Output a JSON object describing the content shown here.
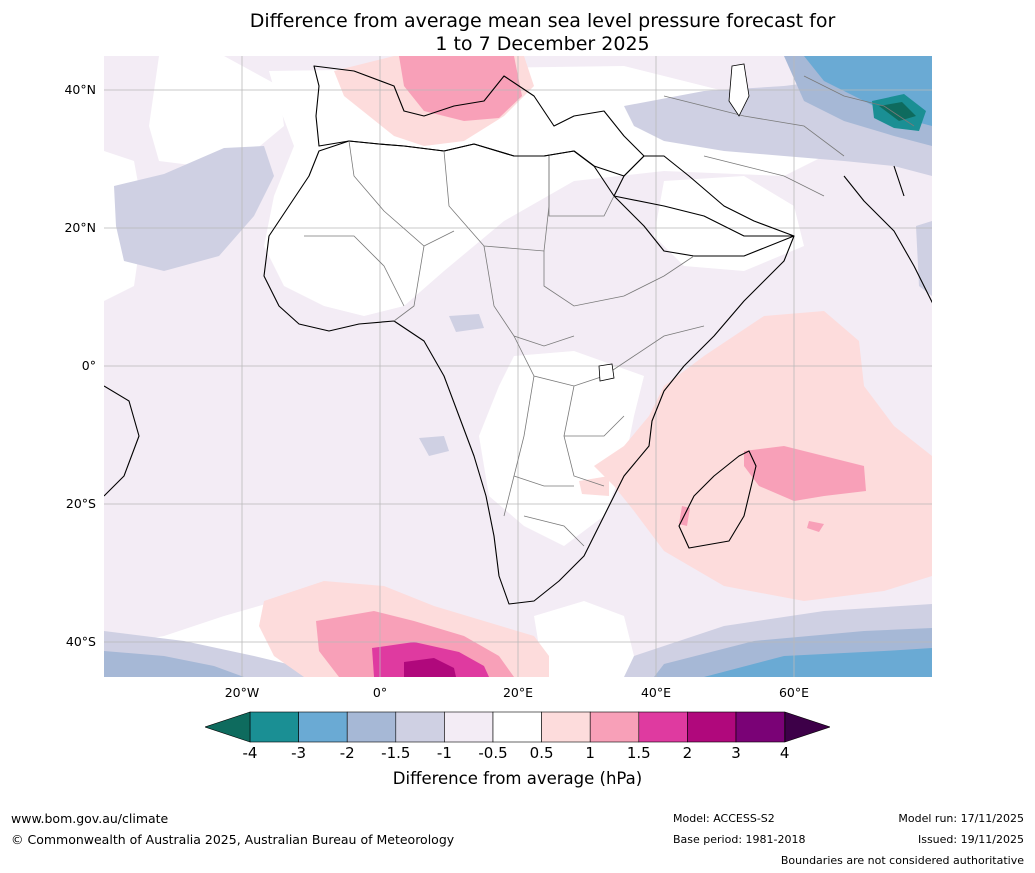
{
  "title": {
    "line1": "Difference from average mean sea level pressure forecast for",
    "line2": "1 to 7 December 2025"
  },
  "map": {
    "region": "Africa",
    "lat_labels": [
      "40°N",
      "20°N",
      "0°",
      "20°S",
      "40°S"
    ],
    "lon_labels": [
      "20°W",
      "0°",
      "20°E",
      "40°E",
      "60°E"
    ],
    "extent": {
      "lon_min": -40,
      "lon_max": 80,
      "lat_min": -45,
      "lat_max": 45
    }
  },
  "colorbar": {
    "ticks": [
      "-4",
      "-3",
      "-2",
      "-1.5",
      "-1",
      "-0.5",
      "0.5",
      "1",
      "1.5",
      "2",
      "3",
      "4"
    ],
    "colors": {
      "below_min": "#0e6b5e",
      "bins": [
        "#1a8f94",
        "#6aaad4",
        "#a6b8d6",
        "#cfd0e3",
        "#f3ecf5",
        "#ffffff",
        "#fddcdc",
        "#f8a0b8",
        "#df3aa0",
        "#b0087c",
        "#7a0276"
      ],
      "above_max": "#3d0048"
    },
    "label": "Difference from average (hPa)"
  },
  "footer": {
    "website": "www.bom.gov.au/climate",
    "copyright": "© Commonwealth of Australia 2025, Australian Bureau of Meteorology",
    "model": "Model: ACCESS-S2",
    "base_period": "Base period: 1981-2018",
    "model_run": "Model run: 17/11/2025",
    "issued": "Issued: 19/11/2025",
    "disclaimer": "Boundaries are not considered authoritative"
  }
}
